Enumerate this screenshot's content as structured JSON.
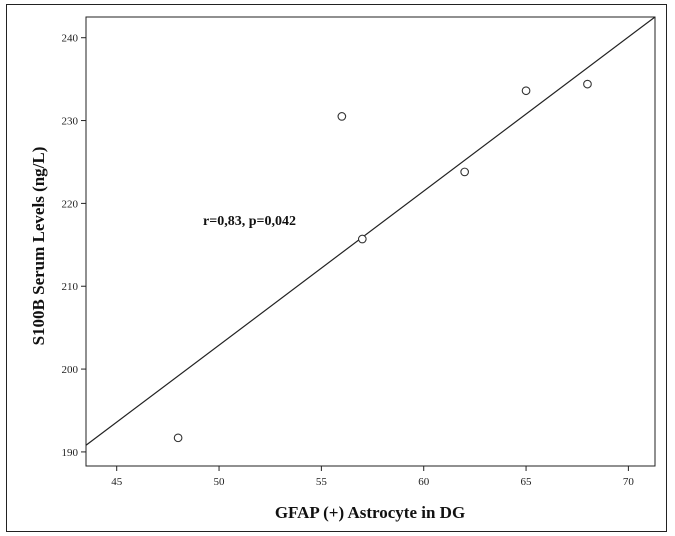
{
  "chart_data": {
    "type": "scatter",
    "xlabel": "GFAP (+) Astrocyte in DG",
    "ylabel": "S100B Serum Levels (ng/L)",
    "xlim": [
      43.5,
      71.3
    ],
    "ylim": [
      188.3,
      242.5
    ],
    "xticks": [
      "45",
      "50",
      "55",
      "60",
      "65",
      "70"
    ],
    "yticks": [
      "190",
      "200",
      "210",
      "220",
      "230",
      "240"
    ],
    "points": [
      {
        "x": 48,
        "y": 191.7
      },
      {
        "x": 56,
        "y": 230.5
      },
      {
        "x": 57,
        "y": 215.7
      },
      {
        "x": 62,
        "y": 223.8
      },
      {
        "x": 65,
        "y": 233.6
      },
      {
        "x": 68,
        "y": 234.4
      }
    ],
    "fit_line": {
      "x": [
        43.5,
        71.3
      ],
      "y": [
        190.8,
        242.5
      ]
    },
    "annotation": "r=0,83, p=0,042",
    "grid": false,
    "colors": {
      "marker": "#333333",
      "line": "#222222",
      "axis": "#222222"
    }
  }
}
